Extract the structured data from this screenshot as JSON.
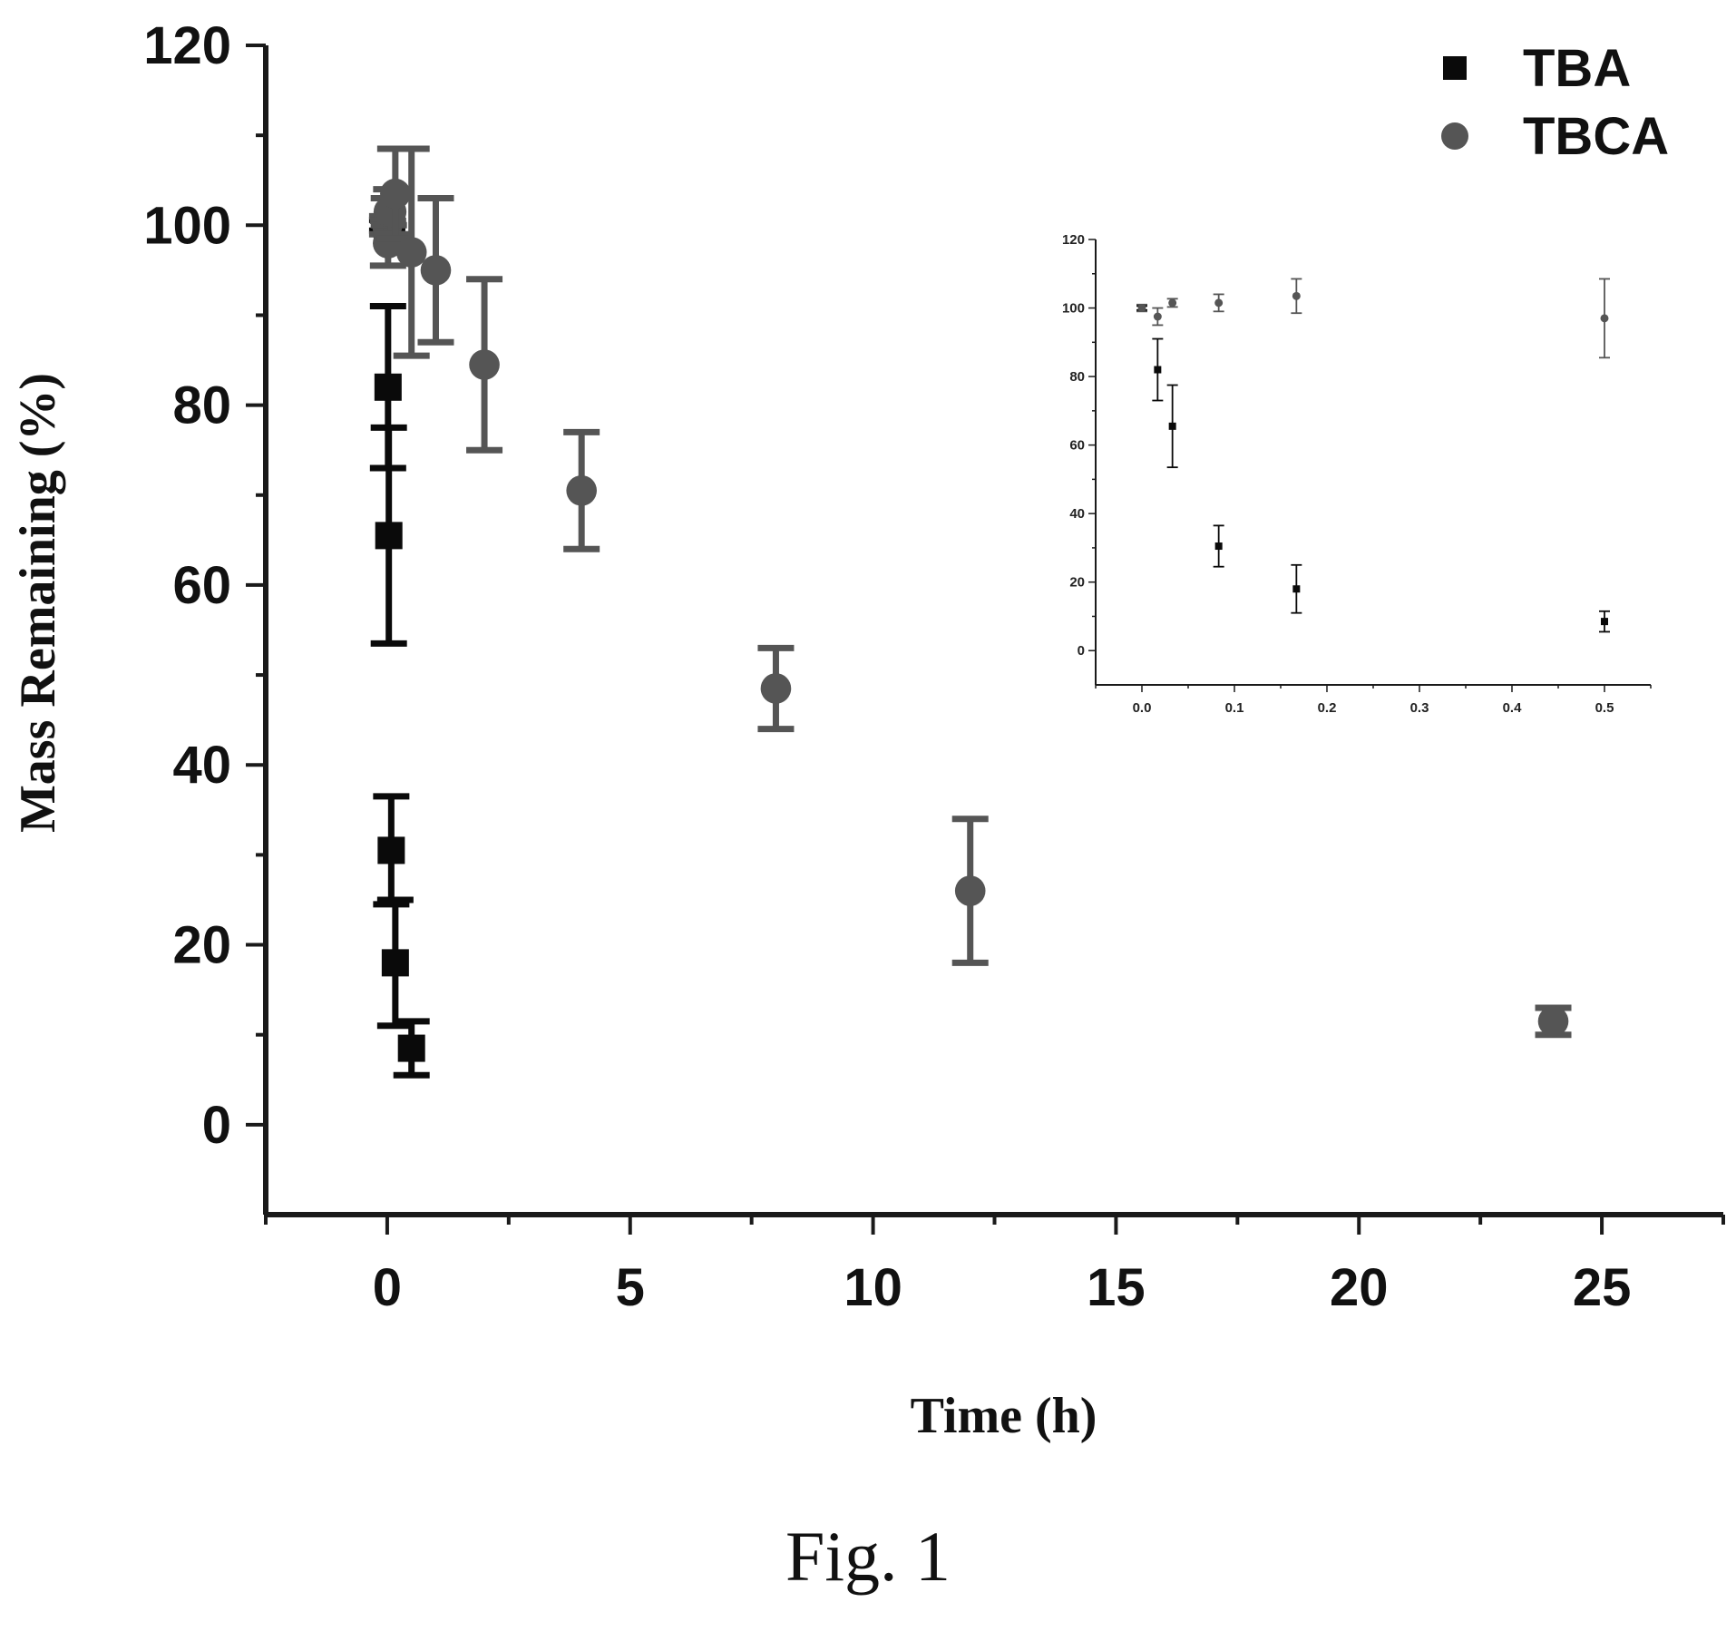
{
  "figure_caption": "Fig. 1",
  "colors": {
    "TBA": "#0a0a0a",
    "TBCA": "#555555",
    "axis": "#1a1a1a"
  },
  "chart_data": [
    {
      "id": "main",
      "type": "scatter",
      "xlabel": "Time (h)",
      "ylabel": "Mass Remaining (%)",
      "xlim": [
        -2.5,
        27.5
      ],
      "ylim": [
        -10,
        120
      ],
      "xticks": [
        0,
        5,
        10,
        15,
        20,
        25
      ],
      "xtick_labels": [
        "0",
        "5",
        "10",
        "15",
        "20",
        "25"
      ],
      "yticks": [
        0,
        20,
        40,
        60,
        80,
        100,
        120
      ],
      "ytick_labels": [
        "0",
        "20",
        "40",
        "60",
        "80",
        "100",
        "120"
      ],
      "legend": {
        "position": "top-right",
        "entries": [
          {
            "name": "TBA",
            "marker": "square"
          },
          {
            "name": "TBCA",
            "marker": "circle"
          }
        ]
      },
      "series": [
        {
          "name": "TBA",
          "marker": "square",
          "points": [
            {
              "x": 0,
              "y": 100,
              "err": 0.6
            },
            {
              "x": 0.017,
              "y": 82,
              "err": 9
            },
            {
              "x": 0.033,
              "y": 65.5,
              "err": 12
            },
            {
              "x": 0.083,
              "y": 30.5,
              "err": 6
            },
            {
              "x": 0.167,
              "y": 18,
              "err": 7
            },
            {
              "x": 0.5,
              "y": 8.5,
              "err": 3
            }
          ]
        },
        {
          "name": "TBCA",
          "marker": "circle",
          "points": [
            {
              "x": 0,
              "y": 100,
              "err": 1
            },
            {
              "x": 0.017,
              "y": 98,
              "err": 2.5
            },
            {
              "x": 0.033,
              "y": 101.5,
              "err": 1.5
            },
            {
              "x": 0.083,
              "y": 101.5,
              "err": 2.5
            },
            {
              "x": 0.167,
              "y": 103.5,
              "err": 5
            },
            {
              "x": 0.5,
              "y": 97,
              "err": 11.5
            },
            {
              "x": 1,
              "y": 95,
              "err": 8
            },
            {
              "x": 2,
              "y": 84.5,
              "err": 9.5
            },
            {
              "x": 4,
              "y": 70.5,
              "err": 6.5
            },
            {
              "x": 8,
              "y": 48.5,
              "err": 4.5
            },
            {
              "x": 12,
              "y": 26,
              "err": 8
            },
            {
              "x": 24,
              "y": 11.5,
              "err": 1.5
            }
          ]
        }
      ]
    },
    {
      "id": "inset",
      "type": "scatter",
      "xlabel": "",
      "ylabel": "",
      "xlim": [
        -0.05,
        0.55
      ],
      "ylim": [
        -10,
        120
      ],
      "xticks": [
        0,
        0.1,
        0.2,
        0.3,
        0.4,
        0.5
      ],
      "xtick_labels": [
        "0.0",
        "0.1",
        "0.2",
        "0.3",
        "0.4",
        "0.5"
      ],
      "yticks": [
        0,
        20,
        40,
        60,
        80,
        100,
        120
      ],
      "ytick_labels": [
        "0",
        "20",
        "40",
        "60",
        "80",
        "100",
        "120"
      ],
      "series": [
        {
          "name": "TBA",
          "marker": "square",
          "points": [
            {
              "x": 0,
              "y": 100,
              "err": 0.6
            },
            {
              "x": 0.017,
              "y": 82,
              "err": 9
            },
            {
              "x": 0.033,
              "y": 65.5,
              "err": 12
            },
            {
              "x": 0.083,
              "y": 30.5,
              "err": 6
            },
            {
              "x": 0.167,
              "y": 18,
              "err": 7
            },
            {
              "x": 0.5,
              "y": 8.5,
              "err": 3
            }
          ]
        },
        {
          "name": "TBCA",
          "marker": "circle",
          "points": [
            {
              "x": 0,
              "y": 100,
              "err": 1
            },
            {
              "x": 0.017,
              "y": 97.5,
              "err": 2.5
            },
            {
              "x": 0.033,
              "y": 101.5,
              "err": 1.2
            },
            {
              "x": 0.083,
              "y": 101.5,
              "err": 2.5
            },
            {
              "x": 0.167,
              "y": 103.5,
              "err": 5
            },
            {
              "x": 0.5,
              "y": 97,
              "err": 11.5
            }
          ]
        }
      ]
    }
  ]
}
